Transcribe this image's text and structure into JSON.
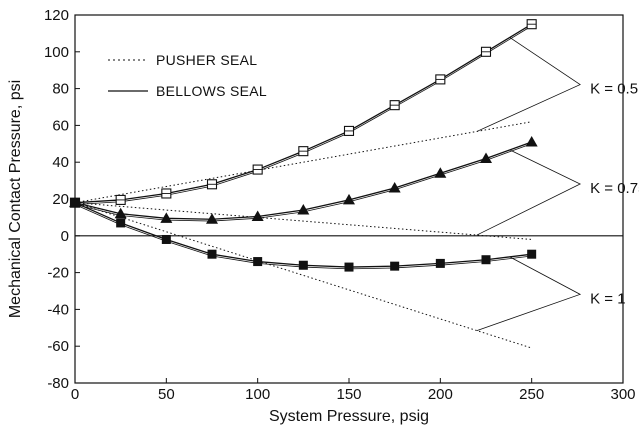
{
  "chart_data": {
    "type": "line",
    "title": "",
    "xlabel": "System Pressure, psig",
    "ylabel": "Mechanical Contact Pressure, psi",
    "xlim": [
      0,
      300
    ],
    "ylim": [
      -80,
      120
    ],
    "xticks": [
      0,
      50,
      100,
      150,
      200,
      250,
      300
    ],
    "yticks": [
      -80,
      -60,
      -40,
      -20,
      0,
      20,
      40,
      60,
      80,
      100,
      120
    ],
    "grid": false,
    "legend_position": "top-left",
    "legend": [
      {
        "name": "PUSHER SEAL",
        "style": "dotted"
      },
      {
        "name": "BELLOWS SEAL",
        "style": "solid"
      }
    ],
    "pusher_series": [
      {
        "k_label": "K = 0.5",
        "x": [
          0,
          250
        ],
        "y": [
          18,
          62
        ]
      },
      {
        "k_label": "K = 0.75",
        "x": [
          0,
          250
        ],
        "y": [
          18,
          -2
        ]
      },
      {
        "k_label": "K = 1",
        "x": [
          0,
          250
        ],
        "y": [
          18,
          -61
        ]
      }
    ],
    "bellows_series": [
      {
        "k_label": "K = 0.5",
        "marker": "open-square",
        "x": [
          0,
          25,
          50,
          75,
          100,
          125,
          150,
          175,
          200,
          225,
          250
        ],
        "y": [
          18,
          19.5,
          23,
          28,
          36,
          46,
          57,
          71,
          85,
          100,
          115
        ]
      },
      {
        "k_label": "K = 0.75",
        "marker": "filled-triangle",
        "x": [
          0,
          25,
          50,
          75,
          100,
          125,
          150,
          175,
          200,
          225,
          250
        ],
        "y": [
          18,
          12,
          9.5,
          9,
          10.5,
          14,
          19.5,
          26,
          34,
          42,
          51
        ]
      },
      {
        "k_label": "K = 1",
        "marker": "filled-square",
        "x": [
          0,
          25,
          50,
          75,
          100,
          125,
          150,
          175,
          200,
          225,
          250
        ],
        "y": [
          18,
          7,
          -2,
          -10,
          -14,
          -16,
          -17,
          -16.5,
          -15,
          -13,
          -10
        ]
      }
    ],
    "annotations": [
      {
        "text": "K = 0.5",
        "label_at": [
          282,
          80
        ]
      },
      {
        "text": "K = 0.75",
        "label_at": [
          282,
          26
        ]
      },
      {
        "text": "K = 1",
        "label_at": [
          282,
          -34
        ]
      }
    ],
    "colors": {
      "line": "#111111",
      "axis": "#111111",
      "background": "#ffffff"
    }
  }
}
